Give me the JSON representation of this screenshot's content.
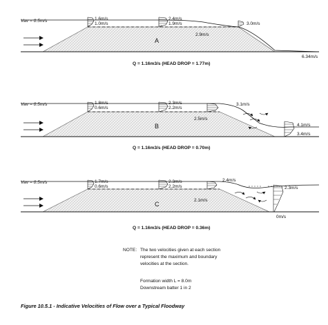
{
  "panels": [
    {
      "letter": "A",
      "vav": "Vav = 0.5m/s",
      "left_vmax": "1.6m/s",
      "left_vb": "1.0m/s",
      "mid_vmax": "2.4m/s",
      "mid_vb": "1.9m/s",
      "crest_v": "2.9m/s",
      "down_v": "3.0m/s",
      "tail_v": "6.34m/s",
      "caption": "Q = 1.16m3/s (HEAD DROP = 1.77m)"
    },
    {
      "letter": "B",
      "vav": "Vav = 0.5m/s",
      "left_vmax": "1.8m/s",
      "left_vb": "0.6m/s",
      "mid_vmax": "2.3m/s",
      "mid_vb": "2.2m/s",
      "crest_v": "2.5m/s",
      "down_v": "3.1m/s",
      "tail_v1": "4.1m/s",
      "tail_v2": "3.4m/s",
      "caption": "Q = 1.16m3/s (HEAD DROP = 0.70m)"
    },
    {
      "letter": "C",
      "vav": "Vav = 0.5m/s",
      "left_vmax": "1.7m/s",
      "left_vb": "0.6m/s",
      "mid_vmax": "2.3m/s",
      "mid_vb": "2.2m/s",
      "crest_v": "2.1m/s",
      "down_v": "2.4m/s",
      "tail_v1": "2.3m/s",
      "tail_v2": "0m/s",
      "caption": "Q = 1.16m3/s (HEAD DROP = 0.36m)"
    }
  ],
  "note": {
    "label": "NOTE:",
    "lines": [
      "The two velocities given at each section",
      "represent the maximum and boundary",
      "velocities at the section."
    ],
    "formation": "Formation width L = 8.0m",
    "batter": "Downstream batter 1 in 2"
  },
  "figure_caption": "Figure 10.5.1 - Indicative Velocities of Flow over a Typical Floodway"
}
